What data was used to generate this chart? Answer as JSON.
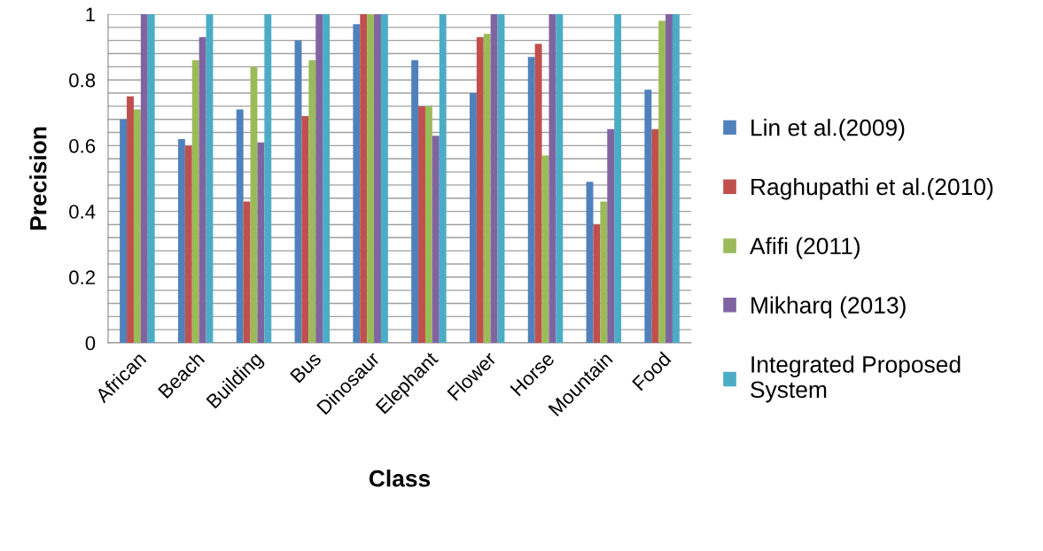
{
  "chart_data": {
    "type": "bar",
    "xlabel": "Class",
    "ylabel": "Precision",
    "categories": [
      "African",
      "Beach",
      "Building",
      "Bus",
      "Dinosaur",
      "Elephant",
      "Flower",
      "Horse",
      "Mountain",
      "Food"
    ],
    "series": [
      {
        "name": "Lin et al.(2009)",
        "color": "#4f81bd",
        "values": [
          0.68,
          0.62,
          0.71,
          0.92,
          0.97,
          0.86,
          0.76,
          0.87,
          0.49,
          0.77
        ]
      },
      {
        "name": "Raghupathi et al.(2010)",
        "color": "#c0504d",
        "values": [
          0.75,
          0.6,
          0.43,
          0.69,
          1,
          0.72,
          0.93,
          0.91,
          0.36,
          0.65
        ]
      },
      {
        "name": "Afifi (2011)",
        "color": "#9bbb59",
        "values": [
          0.71,
          0.86,
          0.84,
          0.86,
          1,
          0.72,
          0.94,
          0.57,
          0.43,
          0.98
        ]
      },
      {
        "name": "Mikharq (2013)",
        "color": "#8064a2",
        "values": [
          1,
          0.93,
          0.61,
          1,
          1,
          0.63,
          1,
          1,
          0.65,
          1
        ]
      },
      {
        "name": "Integrated Proposed\nSystem",
        "color": "#4bacc6",
        "values": [
          1,
          1,
          1,
          1,
          1,
          1,
          1,
          1,
          1,
          1
        ]
      }
    ],
    "ylim": [
      0,
      1
    ],
    "yticks": [
      0,
      {
        "value": 0.04,
        "label": null
      },
      {
        "value": 0.08,
        "label": null
      },
      {
        "value": 0.12,
        "label": null
      },
      {
        "value": 0.16,
        "label": null
      },
      0.2,
      {
        "value": 0.24,
        "label": null
      },
      {
        "value": 0.28,
        "label": null
      },
      {
        "value": 0.32,
        "label": null
      },
      {
        "value": 0.36,
        "label": null
      },
      0.4,
      {
        "value": 0.44,
        "label": null
      },
      {
        "value": 0.48,
        "label": null
      },
      {
        "value": 0.52,
        "label": null
      },
      {
        "value": 0.56,
        "label": null
      },
      0.6,
      {
        "value": 0.64,
        "label": null
      },
      {
        "value": 0.68,
        "label": null
      },
      {
        "value": 0.72,
        "label": null
      },
      {
        "value": 0.76,
        "label": null
      },
      0.8,
      {
        "value": 0.84,
        "label": null
      },
      {
        "value": 0.88,
        "label": null
      },
      {
        "value": 0.92,
        "label": null
      },
      {
        "value": 0.96,
        "label": null
      },
      1
    ],
    "grid": "y",
    "legend": "right"
  }
}
